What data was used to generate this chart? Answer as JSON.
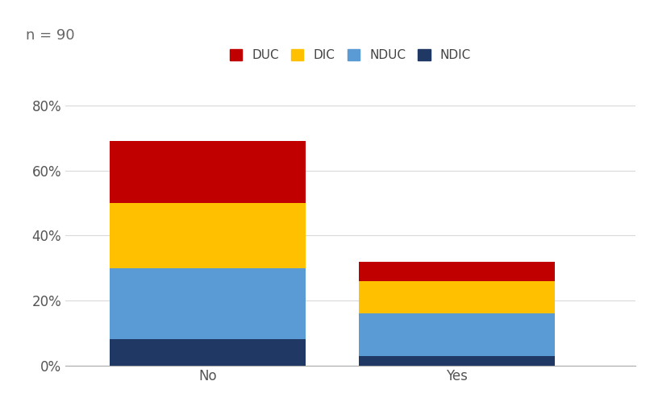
{
  "categories": [
    "No",
    "Yes"
  ],
  "series": {
    "NDIC": [
      0.08,
      0.03
    ],
    "NDUC": [
      0.22,
      0.13
    ],
    "DIC": [
      0.2,
      0.1
    ],
    "DUC": [
      0.19,
      0.06
    ]
  },
  "colors": {
    "NDIC": "#1F3864",
    "NDUC": "#5B9BD5",
    "DIC": "#FFC000",
    "DUC": "#C00000"
  },
  "legend_order": [
    "DUC",
    "DIC",
    "NDUC",
    "NDIC"
  ],
  "ylim": [
    0,
    0.9
  ],
  "yticks": [
    0.0,
    0.2,
    0.4,
    0.6,
    0.8
  ],
  "ytick_labels": [
    "0%",
    "20%",
    "40%",
    "60%",
    "80%"
  ],
  "annotation": "n = 90",
  "background_color": "#ffffff",
  "grid_color": "#d9d9d9",
  "bar_width": 0.55,
  "tick_fontsize": 12,
  "legend_fontsize": 11,
  "annotation_fontsize": 13,
  "x_positions": [
    0.3,
    1.0
  ],
  "xlim": [
    -0.1,
    1.5
  ]
}
